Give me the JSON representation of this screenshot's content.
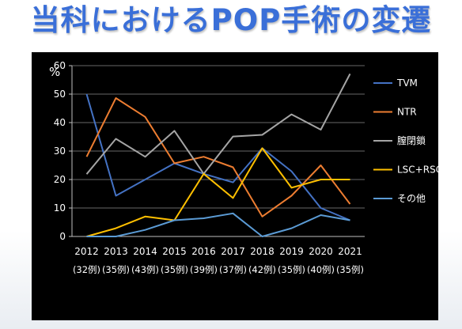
{
  "title": "当科におけるPOP手術の変遷",
  "chart_data": {
    "type": "line",
    "ylabel": "%",
    "ylim": [
      0,
      60
    ],
    "yticks": [
      0,
      10,
      20,
      30,
      40,
      50,
      60
    ],
    "categories": [
      "2012",
      "2013",
      "2014",
      "2015",
      "2016",
      "2017",
      "2018",
      "2019",
      "2020",
      "2021"
    ],
    "sublabels": [
      "(32例)",
      "(35例)",
      "(43例)",
      "(35例)",
      "(39例)",
      "(37例)",
      "(42例)",
      "(35例)",
      "(40例)",
      "(35例)"
    ],
    "legend_position": "right",
    "series": [
      {
        "name": "TVM",
        "color": "#4472c4",
        "values": [
          50,
          14.3,
          20,
          25.7,
          22,
          19,
          31,
          22.9,
          10,
          5.7
        ]
      },
      {
        "name": "NTR",
        "color": "#ed7d31",
        "values": [
          28,
          48.6,
          42,
          25.7,
          28,
          24.3,
          7,
          14.3,
          25,
          11.4
        ]
      },
      {
        "name": "膣閉鎖",
        "color": "#a5a5a5",
        "values": [
          21.9,
          34.3,
          28,
          37.1,
          22,
          35.1,
          35.7,
          42.9,
          37.5,
          57.1
        ]
      },
      {
        "name": "LSC+RSC",
        "color": "#ffc000",
        "values": [
          0,
          2.9,
          7,
          5.7,
          22,
          13.5,
          31,
          17.1,
          20,
          20
        ]
      },
      {
        "name": "その他",
        "color": "#5b9bd5",
        "values": [
          0,
          0,
          2.3,
          5.7,
          6.4,
          8.1,
          0,
          2.9,
          7.5,
          5.7
        ]
      }
    ]
  }
}
